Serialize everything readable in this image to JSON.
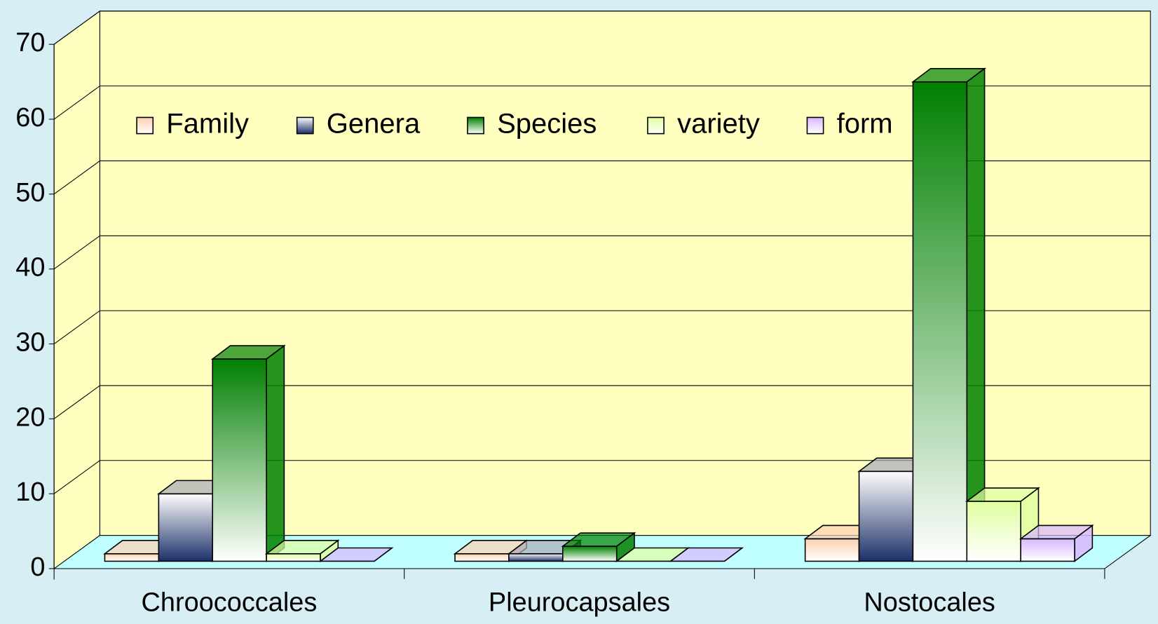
{
  "chart_data": {
    "type": "bar",
    "categories": [
      "Chroococcales",
      "Pleurocapsales",
      "Nostocales"
    ],
    "series": [
      {
        "name": "Family",
        "color": "#ffd0b0",
        "values": [
          1,
          1,
          3
        ]
      },
      {
        "name": "Genera",
        "color": "#1c3068",
        "values": [
          9,
          1,
          12
        ]
      },
      {
        "name": "Species",
        "color": "#008000",
        "values": [
          27,
          2,
          64
        ]
      },
      {
        "name": "variety",
        "color": "#e0ffa0",
        "values": [
          1,
          0,
          8
        ]
      },
      {
        "name": "form",
        "color": "#d8b8ff",
        "values": [
          0,
          0,
          3
        ]
      }
    ],
    "ylim": [
      0,
      70
    ],
    "yticks": [
      0,
      10,
      20,
      30,
      40,
      50,
      60,
      70
    ],
    "grid": true,
    "legend": "top"
  }
}
